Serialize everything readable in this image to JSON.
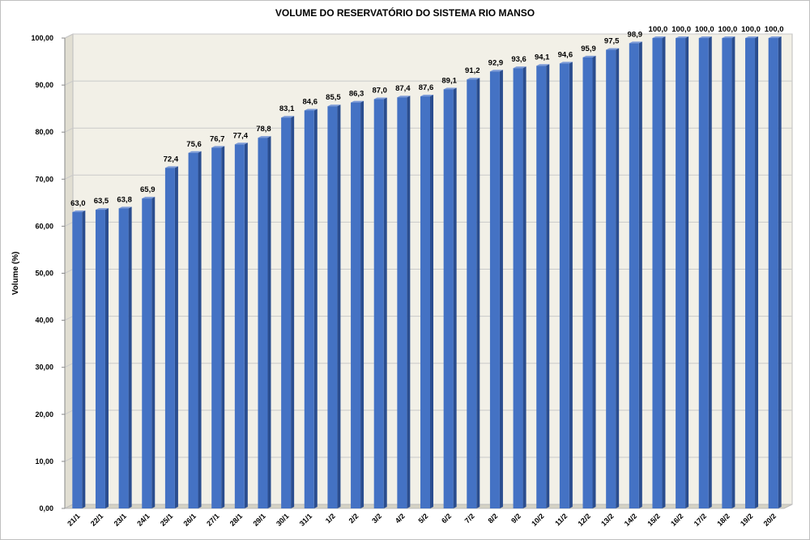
{
  "chart_data": {
    "type": "bar",
    "title": "VOLUME DO RESERVATÓRIO DO SISTEMA RIO MANSO",
    "xlabel": "",
    "ylabel": "Volume (%)",
    "ylim": [
      0,
      100
    ],
    "ytick_step": 10,
    "ytick_labels": [
      "0,00",
      "10,00",
      "20,00",
      "30,00",
      "40,00",
      "50,00",
      "60,00",
      "70,00",
      "80,00",
      "90,00",
      "100,00"
    ],
    "grid": true,
    "legend": "none",
    "bar_color": "#4472c4",
    "categories": [
      "21/1",
      "22/1",
      "23/1",
      "24/1",
      "25/1",
      "26/1",
      "27/1",
      "28/1",
      "29/1",
      "30/1",
      "31/1",
      "1/2",
      "2/2",
      "3/2",
      "4/2",
      "5/2",
      "6/2",
      "7/2",
      "8/2",
      "9/2",
      "10/2",
      "11/2",
      "12/2",
      "13/2",
      "14/2",
      "15/2",
      "16/2",
      "17/2",
      "18/2",
      "19/2",
      "20/2"
    ],
    "values": [
      63.0,
      63.5,
      63.8,
      65.9,
      72.4,
      75.6,
      76.7,
      77.4,
      78.8,
      83.1,
      84.6,
      85.5,
      86.3,
      87.0,
      87.4,
      87.6,
      89.1,
      91.2,
      92.9,
      93.6,
      94.1,
      94.6,
      95.9,
      97.5,
      98.9,
      100.0,
      100.0,
      100.0,
      100.0,
      100.0,
      100.0
    ],
    "data_labels": [
      "63,0",
      "63,5",
      "63,8",
      "65,9",
      "72,4",
      "75,6",
      "76,7",
      "77,4",
      "78,8",
      "83,1",
      "84,6",
      "85,5",
      "86,3",
      "87,0",
      "87,4",
      "87,6",
      "89,1",
      "91,2",
      "92,9",
      "93,6",
      "94,1",
      "94,6",
      "95,9",
      "97,5",
      "98,9",
      "100,0",
      "100,0",
      "100,0",
      "100,0",
      "100,0",
      "100,0"
    ]
  }
}
